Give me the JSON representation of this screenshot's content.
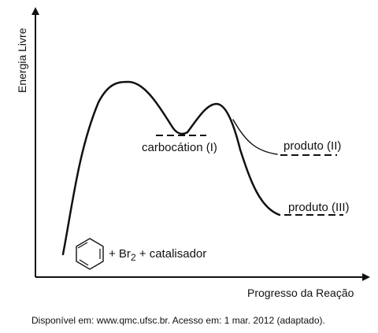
{
  "axes": {
    "y_label": "Energia Livre",
    "x_label": "Progresso da Reação"
  },
  "labels": {
    "intermediate": "carbocátion (I)",
    "product_2": "produto (II)",
    "product_3": "produto (III)"
  },
  "reactants": {
    "prefix": "+ Br",
    "subscript": "2",
    "suffix": " + catalisador",
    "ring_icon": "benzene-ring-icon"
  },
  "source": "Disponível em: www.qmc.ufsc.br. Acesso em: 1 mar. 2012 (adaptado)."
}
